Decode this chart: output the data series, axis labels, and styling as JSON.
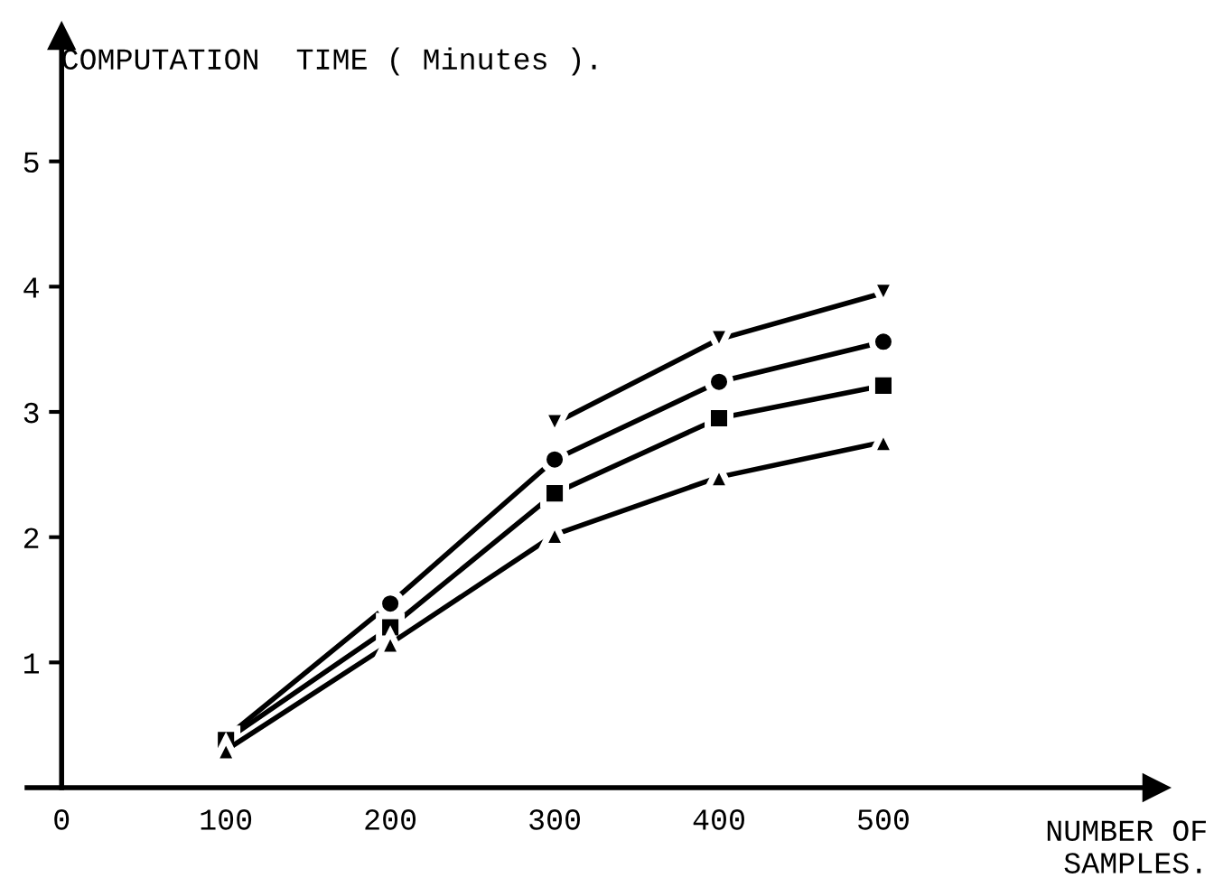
{
  "chart_data": {
    "type": "line",
    "xlabel": "NUMBER OF\nSAMPLES.",
    "ylabel": "COMPUTATION  TIME ( Minutes ).",
    "x": [
      100,
      200,
      300,
      400,
      500
    ],
    "series": [
      {
        "color": "#000000",
        "marker": "triangle_down",
        "values": [
          null,
          null,
          2.91,
          3.58,
          3.95
        ]
      },
      {
        "color": "#000000",
        "marker": "circle",
        "values": [
          0.4,
          1.47,
          2.62,
          3.24,
          3.56
        ]
      },
      {
        "color": "#000000",
        "marker": "square",
        "values": [
          0.38,
          1.28,
          2.35,
          2.95,
          3.21
        ]
      },
      {
        "color": "#000000",
        "marker": "triangle",
        "values": [
          0.3,
          1.15,
          2.02,
          2.48,
          2.76
        ]
      }
    ],
    "xlim": [
      -21,
      666
    ],
    "ylim": [
      0,
      6.0
    ],
    "xticks": [
      0,
      100,
      200,
      300,
      400,
      500
    ],
    "yticks": [
      1,
      2,
      3,
      4,
      5
    ],
    "line_style": "solid",
    "grid": false,
    "legend": false
  }
}
